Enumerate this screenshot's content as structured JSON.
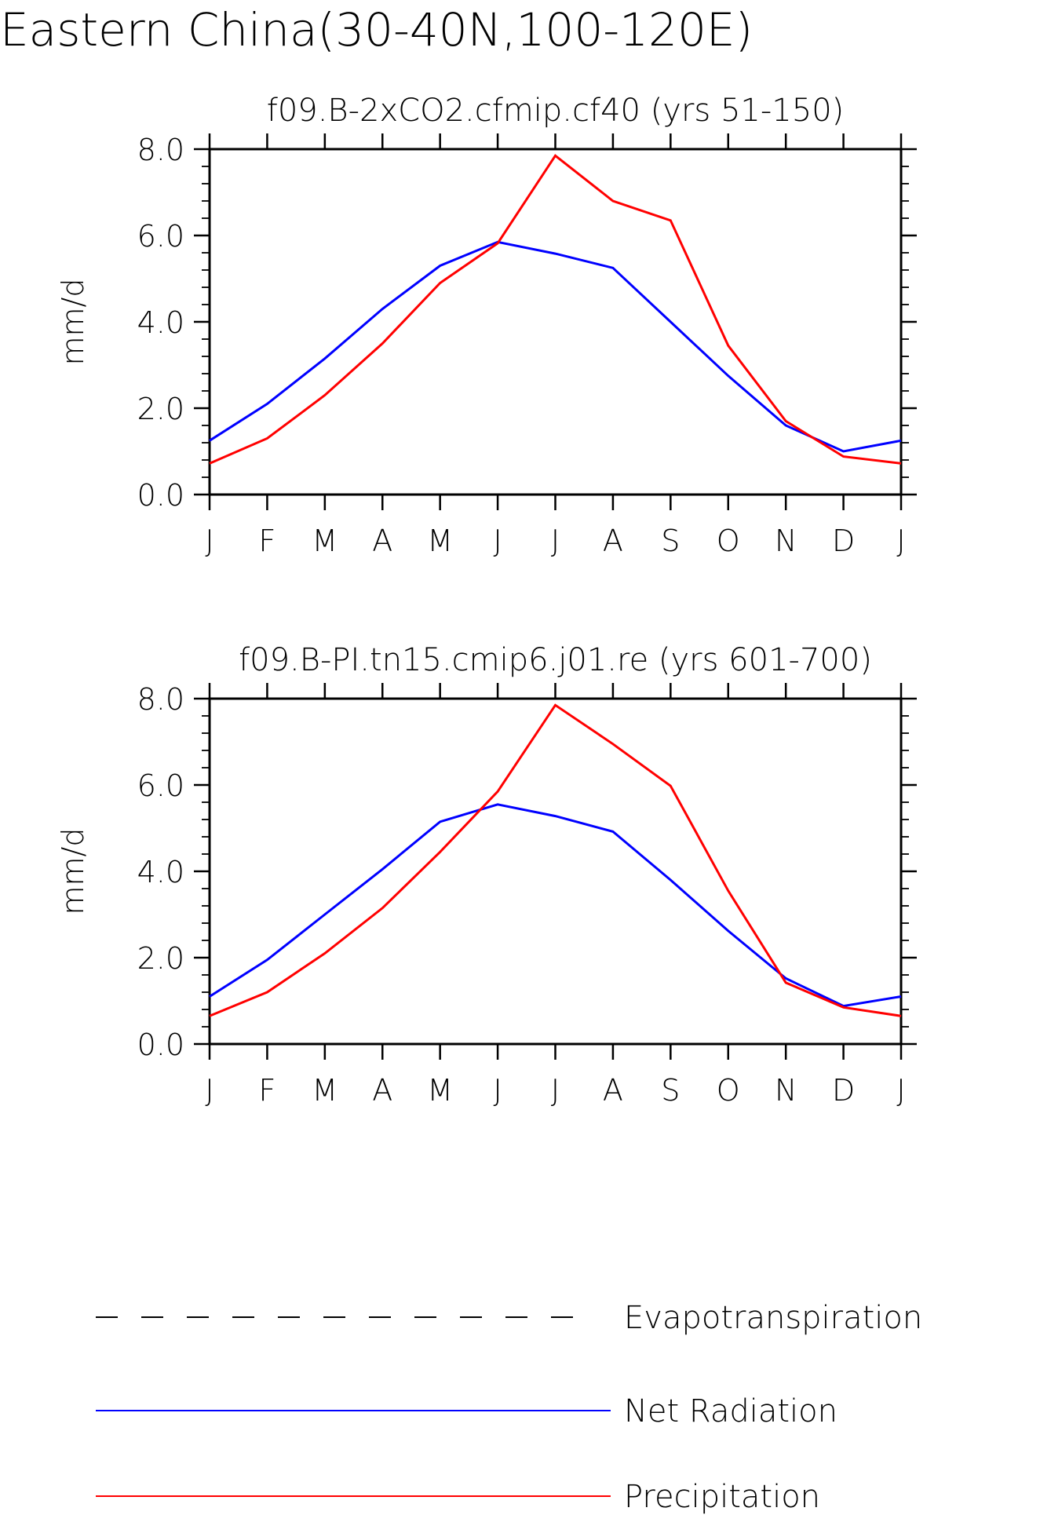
{
  "title": "Eastern China(30-40N,100-120E)",
  "colors": {
    "net_radiation": "#0000ff",
    "precipitation": "#ff0000",
    "evapotranspiration": "#000000"
  },
  "legend": [
    {
      "name": "Evapotranspiration",
      "style": "dashed",
      "color": "#000000"
    },
    {
      "name": "Net Radiation",
      "style": "solid",
      "color": "#0000ff"
    },
    {
      "name": "Precipitation",
      "style": "solid",
      "color": "#ff0000"
    }
  ],
  "chart_data": [
    {
      "type": "line",
      "title": "f09.B-2xCO2.cfmip.cf40 (yrs 51-150)",
      "xlabel": "",
      "ylabel": "mm/d",
      "categories": [
        "J",
        "F",
        "M",
        "A",
        "M",
        "J",
        "J",
        "A",
        "S",
        "O",
        "N",
        "D",
        "J"
      ],
      "yticks": [
        "0.0",
        "2.0",
        "4.0",
        "6.0",
        "8.0"
      ],
      "ylim": [
        0,
        8
      ],
      "grid": false,
      "series": [
        {
          "name": "Net Radiation",
          "color": "#0000ff",
          "values": [
            1.25,
            2.1,
            3.15,
            4.3,
            5.3,
            5.85,
            5.58,
            5.25,
            4.0,
            2.75,
            1.6,
            1.0,
            1.25
          ]
        },
        {
          "name": "Precipitation",
          "color": "#ff0000",
          "values": [
            0.72,
            1.3,
            2.3,
            3.5,
            4.9,
            5.82,
            7.85,
            6.8,
            6.35,
            3.45,
            1.7,
            0.88,
            0.72
          ]
        }
      ]
    },
    {
      "type": "line",
      "title": "f09.B-PI.tn15.cmip6.j01.re (yrs 601-700)",
      "xlabel": "",
      "ylabel": "mm/d",
      "categories": [
        "J",
        "F",
        "M",
        "A",
        "M",
        "J",
        "J",
        "A",
        "S",
        "O",
        "N",
        "D",
        "J"
      ],
      "yticks": [
        "0.0",
        "2.0",
        "4.0",
        "6.0",
        "8.0"
      ],
      "ylim": [
        0,
        8
      ],
      "grid": false,
      "series": [
        {
          "name": "Net Radiation",
          "color": "#0000ff",
          "values": [
            1.1,
            1.95,
            3.0,
            4.05,
            5.15,
            5.55,
            5.28,
            4.92,
            3.8,
            2.62,
            1.52,
            0.88,
            1.1
          ]
        },
        {
          "name": "Precipitation",
          "color": "#ff0000",
          "values": [
            0.65,
            1.2,
            2.1,
            3.15,
            4.45,
            5.85,
            7.85,
            6.95,
            5.98,
            3.55,
            1.42,
            0.85,
            0.65
          ]
        }
      ]
    }
  ]
}
